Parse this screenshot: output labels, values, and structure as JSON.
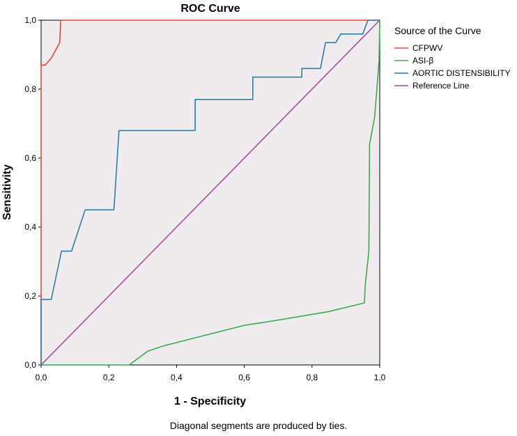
{
  "chart_data": {
    "type": "line",
    "title": "ROC Curve",
    "xlabel": "1 - Specificity",
    "ylabel": "Sensitivity",
    "xlim": [
      0,
      1
    ],
    "ylim": [
      0,
      1
    ],
    "x_ticks": [
      "0,0",
      "0,2",
      "0,4",
      "0,6",
      "0,8",
      "1,0"
    ],
    "y_ticks": [
      "0,0",
      "0,2",
      "0,4",
      "0,6",
      "0,8",
      "1,0"
    ],
    "grid": false,
    "legend_title": "Source of the Curve",
    "legend_position": "right",
    "footnote": "Diagonal segments are produced by ties.",
    "series": [
      {
        "name": "CFPWV",
        "color": "#e8463a",
        "points": [
          [
            0,
            0
          ],
          [
            0,
            0.87
          ],
          [
            0.012,
            0.87
          ],
          [
            0.03,
            0.89
          ],
          [
            0.055,
            0.935
          ],
          [
            0.058,
            1
          ],
          [
            1,
            1
          ]
        ]
      },
      {
        "name": "ASI-β",
        "color": "#3caa4e",
        "points": [
          [
            0,
            0
          ],
          [
            0.26,
            0
          ],
          [
            0.315,
            0.04
          ],
          [
            0.36,
            0.055
          ],
          [
            0.46,
            0.08
          ],
          [
            0.6,
            0.115
          ],
          [
            0.7,
            0.13
          ],
          [
            0.85,
            0.155
          ],
          [
            0.955,
            0.18
          ],
          [
            0.957,
            0.23
          ],
          [
            0.968,
            0.33
          ],
          [
            0.97,
            0.64
          ],
          [
            0.985,
            0.72
          ],
          [
            0.998,
            0.88
          ],
          [
            1,
            1
          ]
        ]
      },
      {
        "name": "AORTIC DISTENSIBILITY",
        "color": "#2f7fa3",
        "points": [
          [
            0,
            0
          ],
          [
            0,
            0.19
          ],
          [
            0.03,
            0.19
          ],
          [
            0.06,
            0.33
          ],
          [
            0.09,
            0.33
          ],
          [
            0.13,
            0.45
          ],
          [
            0.215,
            0.45
          ],
          [
            0.23,
            0.68
          ],
          [
            0.455,
            0.68
          ],
          [
            0.455,
            0.77
          ],
          [
            0.625,
            0.77
          ],
          [
            0.625,
            0.835
          ],
          [
            0.77,
            0.835
          ],
          [
            0.77,
            0.86
          ],
          [
            0.825,
            0.86
          ],
          [
            0.84,
            0.935
          ],
          [
            0.87,
            0.935
          ],
          [
            0.885,
            0.96
          ],
          [
            0.95,
            0.96
          ],
          [
            0.965,
            1
          ],
          [
            1,
            1
          ]
        ]
      },
      {
        "name": "Reference Line",
        "color": "#a64d9e",
        "points": [
          [
            0,
            0
          ],
          [
            1,
            1
          ]
        ]
      }
    ]
  }
}
